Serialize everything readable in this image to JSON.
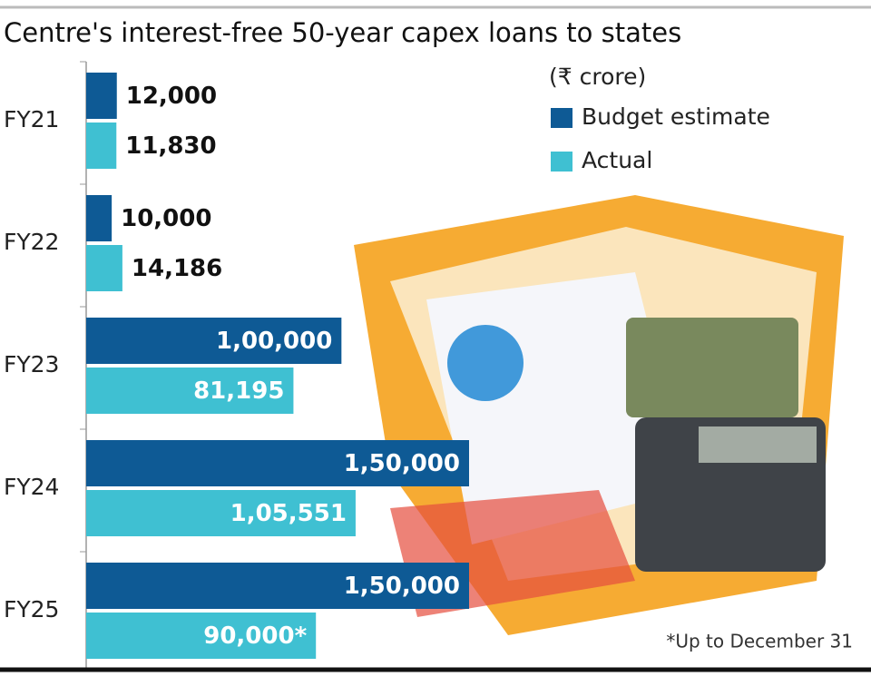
{
  "chart_data": {
    "type": "bar",
    "orientation": "horizontal",
    "title": "Centre's interest-free 50-year capex loans to states",
    "subtitle": "(₹ crore)",
    "note": "*Up to December 31",
    "categories": [
      "FY21",
      "FY22",
      "FY23",
      "FY24",
      "FY25"
    ],
    "series": [
      {
        "name": "Budget estimate",
        "color": "#0e5a95",
        "values": [
          12000,
          10000,
          100000,
          150000,
          150000
        ],
        "value_labels": [
          "12,000",
          "10,000",
          "1,00,000",
          "1,50,000",
          "1,50,000"
        ]
      },
      {
        "name": "Actual",
        "color": "#3fc0d2",
        "values": [
          11830,
          14186,
          81195,
          105551,
          90000
        ],
        "value_labels": [
          "11,830",
          "14,186",
          "81,195",
          "1,05,551",
          "90,000*"
        ]
      }
    ]
  }
}
